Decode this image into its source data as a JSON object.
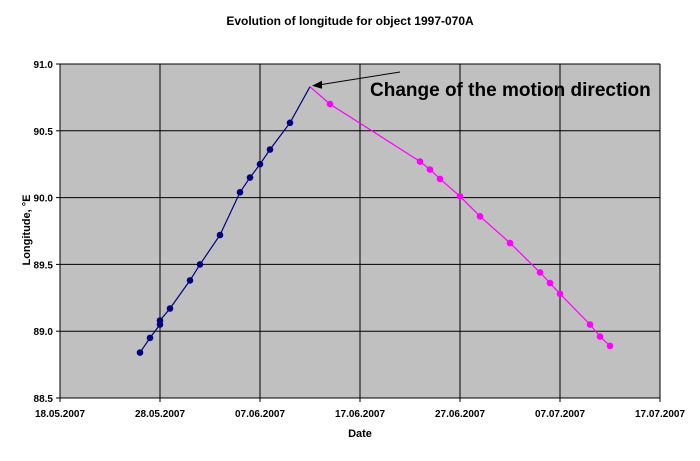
{
  "chart_data": {
    "type": "line",
    "title": "Evolution of longitude for object 1997-070A",
    "xlabel": "Date",
    "ylabel": "Longitude, °E",
    "x_ticks": [
      "18.05.2007",
      "28.05.2007",
      "07.06.2007",
      "17.06.2007",
      "27.06.2007",
      "07.07.2007",
      "17.07.2007"
    ],
    "y_ticks": [
      "88.5",
      "89.0",
      "89.5",
      "90.0",
      "90.5",
      "91.0"
    ],
    "xlim": [
      "2007-05-18",
      "2007-07-17"
    ],
    "ylim": [
      88.5,
      91.0
    ],
    "grid": true,
    "background": "#c0c0c0",
    "annotation": "Change of the motion direction",
    "annotation_point": {
      "x": "2007-06-12",
      "y": 90.83
    },
    "series": [
      {
        "color": "#000080",
        "points": [
          {
            "x": "2007-05-26",
            "y": 88.84
          },
          {
            "x": "2007-05-27",
            "y": 88.95
          },
          {
            "x": "2007-05-28",
            "y": 89.05
          },
          {
            "x": "2007-05-28",
            "y": 89.08
          },
          {
            "x": "2007-05-29",
            "y": 89.17
          },
          {
            "x": "2007-05-31",
            "y": 89.38
          },
          {
            "x": "2007-06-01",
            "y": 89.5
          },
          {
            "x": "2007-06-03",
            "y": 89.72
          },
          {
            "x": "2007-06-05",
            "y": 90.04
          },
          {
            "x": "2007-06-06",
            "y": 90.15
          },
          {
            "x": "2007-06-07",
            "y": 90.25
          },
          {
            "x": "2007-06-08",
            "y": 90.36
          },
          {
            "x": "2007-06-10",
            "y": 90.56
          },
          {
            "x": "2007-06-12",
            "y": 90.83
          }
        ]
      },
      {
        "color": "#ff00ff",
        "points": [
          {
            "x": "2007-06-12",
            "y": 90.83
          },
          {
            "x": "2007-06-14",
            "y": 90.7
          },
          {
            "x": "2007-06-23",
            "y": 90.27
          },
          {
            "x": "2007-06-24",
            "y": 90.21
          },
          {
            "x": "2007-06-25",
            "y": 90.14
          },
          {
            "x": "2007-06-27",
            "y": 90.01
          },
          {
            "x": "2007-06-29",
            "y": 89.86
          },
          {
            "x": "2007-07-02",
            "y": 89.66
          },
          {
            "x": "2007-07-05",
            "y": 89.44
          },
          {
            "x": "2007-07-06",
            "y": 89.36
          },
          {
            "x": "2007-07-07",
            "y": 89.28
          },
          {
            "x": "2007-07-10",
            "y": 89.05
          },
          {
            "x": "2007-07-11",
            "y": 88.96
          },
          {
            "x": "2007-07-12",
            "y": 88.89
          }
        ]
      }
    ]
  }
}
